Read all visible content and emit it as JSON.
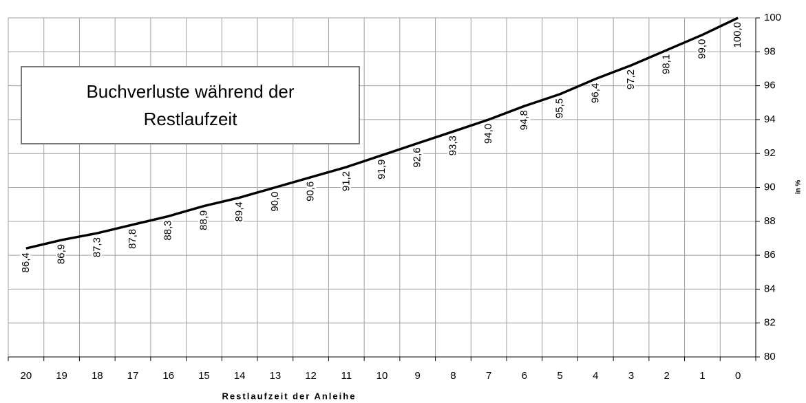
{
  "chart_data": {
    "type": "line",
    "title": "Buchverluste während der Restlaufzeit",
    "x_label": "Restlaufzeit der Anleihe",
    "y_label": "in %",
    "categories": [
      "20",
      "19",
      "18",
      "17",
      "16",
      "15",
      "14",
      "13",
      "12",
      "11",
      "10",
      "9",
      "8",
      "7",
      "6",
      "5",
      "4",
      "3",
      "2",
      "1",
      "0"
    ],
    "series": [
      {
        "color": "#000000",
        "values": [
          86.4,
          86.9,
          87.3,
          87.8,
          88.3,
          88.9,
          89.4,
          90.0,
          90.6,
          91.2,
          91.9,
          92.6,
          93.3,
          94.0,
          94.8,
          95.5,
          96.4,
          97.2,
          98.1,
          99.0,
          100.0
        ],
        "value_labels": [
          "86,4",
          "86,9",
          "87,3",
          "87,8",
          "88,3",
          "88,9",
          "89,4",
          "90,0",
          "90,6",
          "91,2",
          "91,9",
          "92,6",
          "93,3",
          "94,0",
          "94,8",
          "95,5",
          "96,4",
          "97,2",
          "98,1",
          "99,0",
          "100,0"
        ]
      }
    ],
    "ylim": [
      80,
      100
    ],
    "yticks": [
      80,
      82,
      84,
      86,
      88,
      90,
      92,
      94,
      96,
      98,
      100
    ],
    "y_axis_side": "right",
    "grid": true
  }
}
